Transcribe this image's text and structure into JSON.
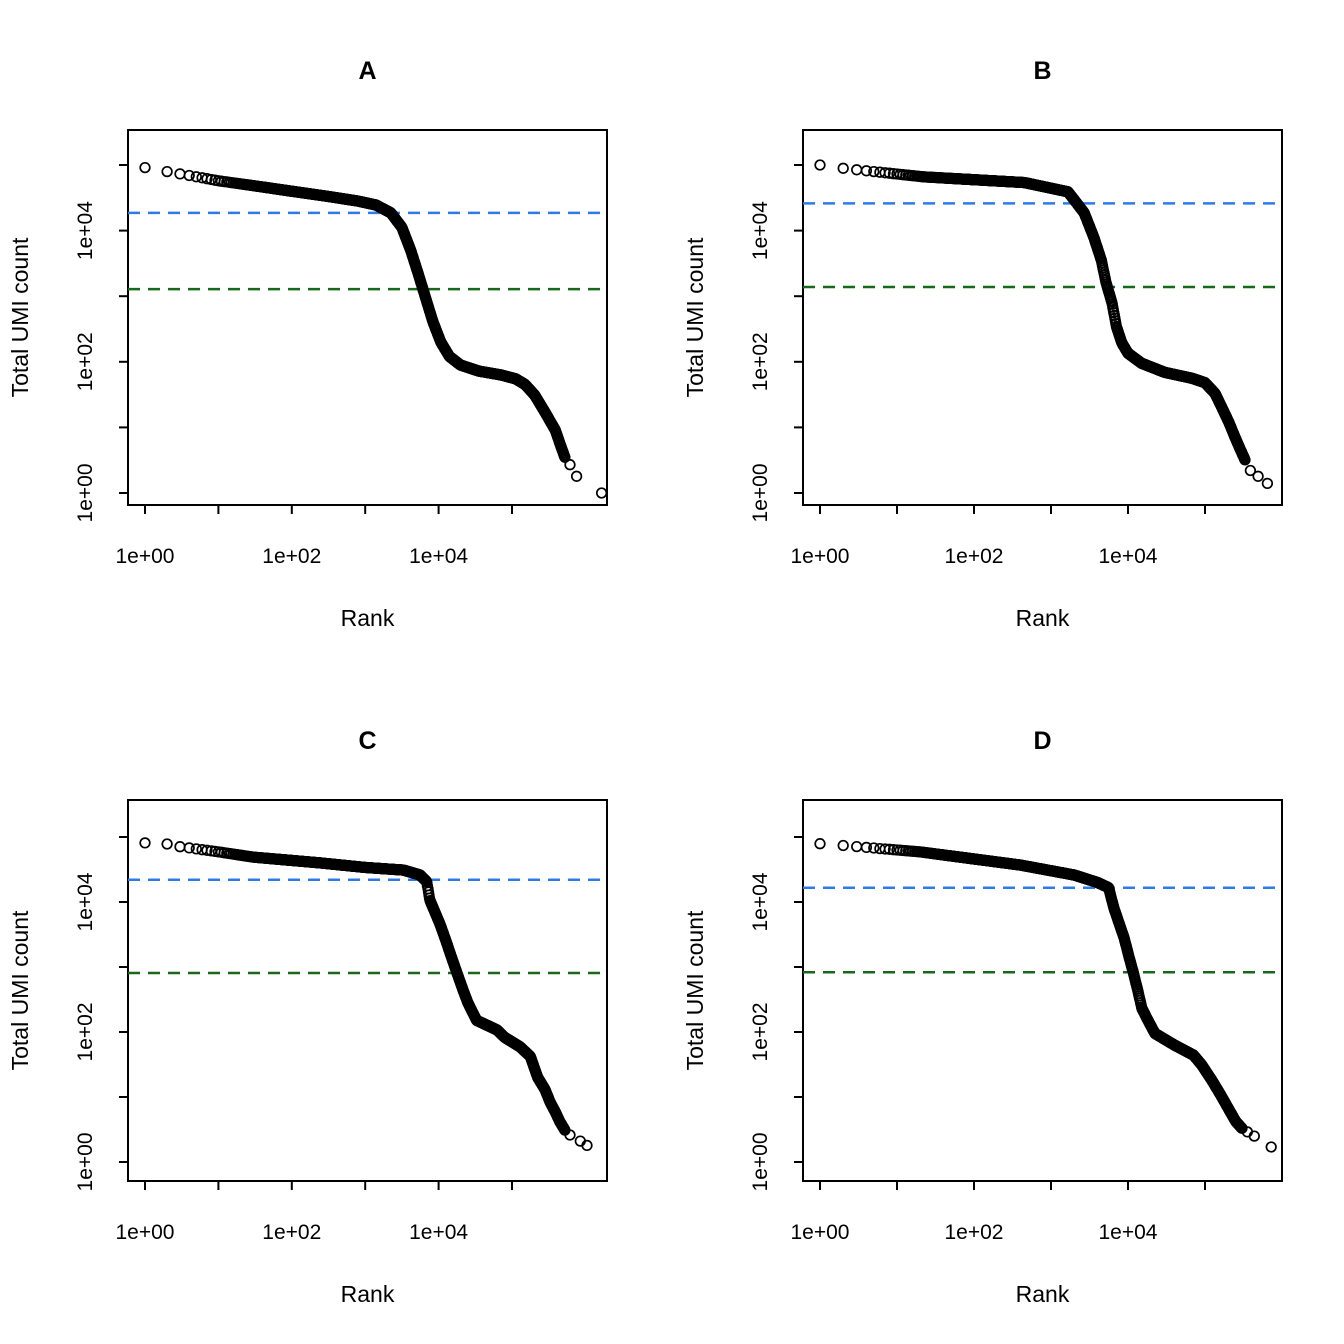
{
  "figure": {
    "background": "#ffffff",
    "point_color": "#000000",
    "knee_color": "#2b7ce9",
    "inflection_color": "#156918"
  },
  "chart_data": [
    {
      "id": "A",
      "type": "scatter",
      "title": "A",
      "xlabel": "Rank",
      "ylabel": "Total UMI count",
      "x_scale": "log10",
      "y_scale": "log10",
      "xlim": [
        0.6,
        2000000
      ],
      "ylim": [
        0.66,
        340000
      ],
      "grid": false,
      "legend": null,
      "x_tick_values": [
        1,
        10,
        100,
        1000,
        10000,
        100000
      ],
      "x_labeled_ticks": [
        {
          "value": 1,
          "label": "1e+00"
        },
        {
          "value": 100,
          "label": "1e+02"
        },
        {
          "value": 10000,
          "label": "1e+04"
        }
      ],
      "y_tick_values": [
        1,
        10,
        100,
        1000,
        10000,
        100000
      ],
      "y_labeled_ticks": [
        {
          "value": 1,
          "label": "1e+00"
        },
        {
          "value": 100,
          "label": "1e+02"
        },
        {
          "value": 10000,
          "label": "1e+04"
        }
      ],
      "hlines": [
        {
          "name": "knee-threshold",
          "value": 18600,
          "color": "#2b7ce9",
          "style": "dashed"
        },
        {
          "name": "inflection-threshold",
          "value": 1280,
          "color": "#156918",
          "style": "dashed"
        }
      ],
      "series": [
        {
          "name": "barcodes",
          "marker": "open-circle",
          "color": "#000000",
          "points": [
            [
              1,
              91200
            ],
            [
              2,
              79400
            ],
            [
              4,
              69200
            ],
            [
              10,
              57500
            ],
            [
              32,
              47900
            ],
            [
              100,
              39800
            ],
            [
              316,
              33100
            ],
            [
              794,
              28200
            ],
            [
              1410,
              24500
            ],
            [
              2240,
              18600
            ],
            [
              3160,
              11200
            ],
            [
              4170,
              5000
            ],
            [
              5250,
              2240
            ],
            [
              6760,
              891
            ],
            [
              8320,
              417
            ],
            [
              10700,
              200
            ],
            [
              14100,
              120
            ],
            [
              20000,
              89
            ],
            [
              35500,
              72
            ],
            [
              70800,
              63
            ],
            [
              112000,
              55
            ],
            [
              151000,
              45
            ],
            [
              204000,
              31
            ],
            [
              282000,
              17
            ],
            [
              389000,
              9.1
            ],
            [
              457000,
              5.4
            ],
            [
              525000,
              3.5
            ]
          ],
          "tail_points": [
            [
              616000,
              2.7
            ],
            [
              759000,
              1.8
            ],
            [
              1660000,
              1.0
            ]
          ]
        }
      ]
    },
    {
      "id": "B",
      "type": "scatter",
      "title": "B",
      "xlabel": "Rank",
      "ylabel": "Total UMI count",
      "x_scale": "log10",
      "y_scale": "log10",
      "xlim": [
        0.6,
        1070000
      ],
      "ylim": [
        0.66,
        340000
      ],
      "grid": false,
      "legend": null,
      "x_tick_values": [
        1,
        10,
        100,
        1000,
        10000,
        100000
      ],
      "x_labeled_ticks": [
        {
          "value": 1,
          "label": "1e+00"
        },
        {
          "value": 100,
          "label": "1e+02"
        },
        {
          "value": 10000,
          "label": "1e+04"
        }
      ],
      "y_tick_values": [
        1,
        10,
        100,
        1000,
        10000,
        100000
      ],
      "y_labeled_ticks": [
        {
          "value": 1,
          "label": "1e+00"
        },
        {
          "value": 100,
          "label": "1e+02"
        },
        {
          "value": 10000,
          "label": "1e+04"
        }
      ],
      "hlines": [
        {
          "name": "knee-threshold",
          "value": 26000,
          "color": "#2b7ce9",
          "style": "dashed"
        },
        {
          "name": "inflection-threshold",
          "value": 1380,
          "color": "#156918",
          "style": "dashed"
        }
      ],
      "series": [
        {
          "name": "barcodes",
          "marker": "open-circle",
          "color": "#000000",
          "points": [
            [
              1,
              100000
            ],
            [
              2,
              89000
            ],
            [
              22,
              66000
            ],
            [
              450,
              54000
            ],
            [
              1660,
              39000
            ],
            [
              2000,
              29500
            ],
            [
              2700,
              18600
            ],
            [
              3600,
              7900
            ],
            [
              4500,
              3550
            ],
            [
              5200,
              1590
            ],
            [
              6200,
              790
            ],
            [
              7100,
              340
            ],
            [
              8300,
              195
            ],
            [
              10000,
              135
            ],
            [
              15000,
              95
            ],
            [
              30000,
              69
            ],
            [
              68000,
              56
            ],
            [
              100000,
              48
            ],
            [
              135000,
              33
            ],
            [
              166000,
              20
            ],
            [
              204000,
              12
            ],
            [
              245000,
              7.1
            ],
            [
              288000,
              4.6
            ],
            [
              331000,
              3.2
            ]
          ],
          "tail_points": [
            [
              389000,
              2.2
            ],
            [
              490000,
              1.8
            ],
            [
              646000,
              1.4
            ]
          ]
        }
      ]
    },
    {
      "id": "C",
      "type": "scatter",
      "title": "C",
      "xlabel": "Rank",
      "ylabel": "Total UMI count",
      "x_scale": "log10",
      "y_scale": "log10",
      "xlim": [
        0.6,
        1970000
      ],
      "ylim": [
        0.51,
        370000
      ],
      "grid": false,
      "legend": null,
      "x_tick_values": [
        1,
        10,
        100,
        1000,
        10000,
        100000
      ],
      "x_labeled_ticks": [
        {
          "value": 1,
          "label": "1e+00"
        },
        {
          "value": 100,
          "label": "1e+02"
        },
        {
          "value": 10000,
          "label": "1e+04"
        }
      ],
      "y_tick_values": [
        1,
        10,
        100,
        1000,
        10000,
        100000
      ],
      "y_labeled_ticks": [
        {
          "value": 1,
          "label": "1e+00"
        },
        {
          "value": 100,
          "label": "1e+02"
        },
        {
          "value": 10000,
          "label": "1e+04"
        }
      ],
      "hlines": [
        {
          "name": "knee-threshold",
          "value": 22000,
          "color": "#2b7ce9",
          "style": "dashed"
        },
        {
          "name": "inflection-threshold",
          "value": 810,
          "color": "#156918",
          "style": "dashed"
        }
      ],
      "series": [
        {
          "name": "barcodes",
          "marker": "open-circle",
          "color": "#000000",
          "points": [
            [
              1,
              81000
            ],
            [
              2,
              78000
            ],
            [
              3,
              71000
            ],
            [
              10,
              59000
            ],
            [
              30,
              49000
            ],
            [
              240,
              40000
            ],
            [
              1000,
              34000
            ],
            [
              3300,
              31000
            ],
            [
              5600,
              26000
            ],
            [
              6900,
              20500
            ],
            [
              7600,
              10700
            ],
            [
              10500,
              4500
            ],
            [
              12900,
              2340
            ],
            [
              15100,
              1380
            ],
            [
              17800,
              810
            ],
            [
              21400,
              450
            ],
            [
              25100,
              280
            ],
            [
              33000,
              151
            ],
            [
              63000,
              107
            ],
            [
              79000,
              83
            ],
            [
              129000,
              59
            ],
            [
              178000,
              42
            ],
            [
              224000,
              20
            ],
            [
              282000,
              13
            ],
            [
              331000,
              8.3
            ],
            [
              389000,
              5.9
            ],
            [
              447000,
              4.2
            ],
            [
              525000,
              3.1
            ]
          ],
          "tail_points": [
            [
              616000,
              2.6
            ],
            [
              851000,
              2.1
            ],
            [
              1050000,
              1.8
            ]
          ]
        }
      ]
    },
    {
      "id": "D",
      "type": "scatter",
      "title": "D",
      "xlabel": "Rank",
      "ylabel": "Total UMI count",
      "x_scale": "log10",
      "y_scale": "log10",
      "xlim": [
        0.6,
        1070000
      ],
      "ylim": [
        0.51,
        370000
      ],
      "grid": false,
      "legend": null,
      "x_tick_values": [
        1,
        10,
        100,
        1000,
        10000,
        100000
      ],
      "x_labeled_ticks": [
        {
          "value": 1,
          "label": "1e+00"
        },
        {
          "value": 100,
          "label": "1e+02"
        },
        {
          "value": 10000,
          "label": "1e+04"
        }
      ],
      "y_tick_values": [
        1,
        10,
        100,
        1000,
        10000,
        100000
      ],
      "y_labeled_ticks": [
        {
          "value": 1,
          "label": "1e+00"
        },
        {
          "value": 100,
          "label": "1e+02"
        },
        {
          "value": 10000,
          "label": "1e+04"
        }
      ],
      "hlines": [
        {
          "name": "knee-threshold",
          "value": 16600,
          "color": "#2b7ce9",
          "style": "dashed"
        },
        {
          "name": "inflection-threshold",
          "value": 830,
          "color": "#156918",
          "style": "dashed"
        }
      ],
      "series": [
        {
          "name": "barcodes",
          "marker": "open-circle",
          "color": "#000000",
          "points": [
            [
              1,
              79000
            ],
            [
              2,
              74000
            ],
            [
              20,
              59000
            ],
            [
              400,
              37000
            ],
            [
              2000,
              26000
            ],
            [
              4000,
              20000
            ],
            [
              5600,
              16600
            ],
            [
              6600,
              7900
            ],
            [
              8900,
              2800
            ],
            [
              10500,
              1320
            ],
            [
              11700,
              830
            ],
            [
              13500,
              420
            ],
            [
              15100,
              234
            ],
            [
              17800,
              158
            ],
            [
              22400,
              95
            ],
            [
              40000,
              63
            ],
            [
              71000,
              44
            ],
            [
              91000,
              31
            ],
            [
              123000,
              18
            ],
            [
              158000,
              11
            ],
            [
              195000,
              7.1
            ],
            [
              251000,
              4.2
            ],
            [
              302000,
              3.3
            ]
          ],
          "tail_points": [
            [
              355000,
              2.9
            ],
            [
              437000,
              2.5
            ],
            [
              724000,
              1.7
            ]
          ]
        }
      ]
    }
  ]
}
